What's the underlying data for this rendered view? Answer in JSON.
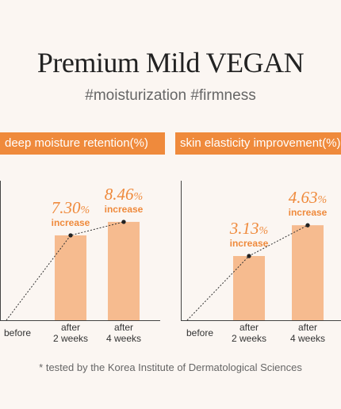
{
  "header": {
    "title": "Premium Mild VEGAN",
    "subtitle": "#moisturization #firmness"
  },
  "footnote": "* tested by the Korea Institute of Dermatological Sciences",
  "colors": {
    "bar": "#f6bb8f",
    "banner": "#ef8a3c",
    "value_text": "#ef8a3c",
    "background": "#fbf6f2"
  },
  "chart_data": [
    {
      "type": "bar",
      "title": "deep moisture retention(%)",
      "categories": [
        "before",
        "after\n2 weeks",
        "after\n4 weeks"
      ],
      "values": [
        0,
        7.3,
        8.46
      ],
      "value_labels": [
        "",
        "7.30%",
        "8.46%"
      ],
      "annotation": "increase",
      "ylim": [
        0,
        12
      ],
      "trend_line": "dotted"
    },
    {
      "type": "bar",
      "title": "skin elasticity improvement(%)",
      "categories": [
        "before",
        "after\n2 weeks",
        "after\n4 weeks"
      ],
      "values": [
        0,
        3.13,
        4.63
      ],
      "value_labels": [
        "",
        "3.13%",
        "4.63%"
      ],
      "annotation": "increase",
      "ylim": [
        0,
        6.8
      ],
      "trend_line": "dotted"
    }
  ]
}
